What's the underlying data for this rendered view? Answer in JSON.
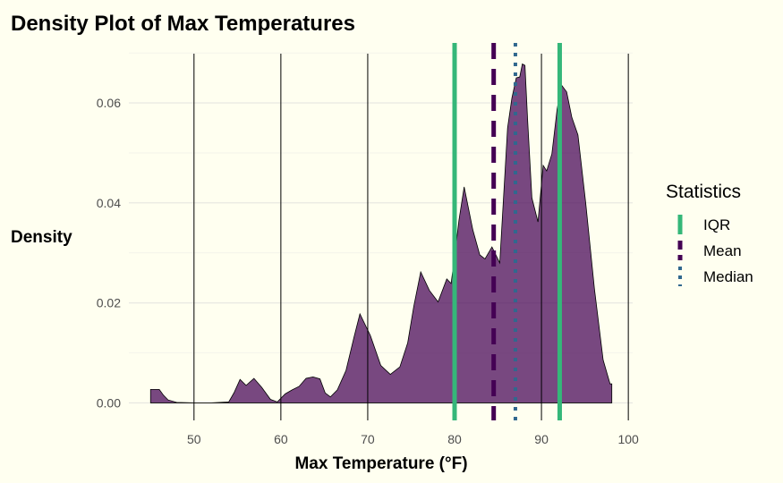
{
  "chart_data": {
    "type": "area",
    "title": "Density Plot of Max Temperatures",
    "xlabel": "Max Temperature (°F)",
    "ylabel": "Density",
    "xlim": [
      42.5,
      100.5
    ],
    "ylim": [
      -0.0035,
      0.072
    ],
    "x_ticks": [
      50,
      60,
      70,
      80,
      90,
      100
    ],
    "y_ticks": [
      0.0,
      0.02,
      0.04,
      0.06
    ],
    "y_tick_labels": [
      "0.00",
      "0.02",
      "0.04",
      "0.06"
    ],
    "grid": true,
    "fill_color": "#440154",
    "vertical_lines": [
      50,
      60,
      70,
      90,
      100
    ],
    "density": {
      "x": [
        45,
        46,
        46.5,
        47,
        48,
        50,
        52,
        54,
        54.6,
        55.3,
        56,
        56.9,
        57.8,
        58.8,
        59.6,
        60.5,
        61.3,
        62.1,
        62.9,
        63.7,
        64.5,
        65.1,
        65.7,
        66.5,
        67.5,
        68.4,
        69.1,
        70.3,
        71.5,
        72.6,
        73.7,
        74.6,
        75.3,
        76.1,
        77.1,
        78.1,
        79.1,
        79.6,
        80.1,
        80.5,
        81.1,
        82.1,
        82.9,
        83.5,
        84.3,
        85.2,
        86.1,
        86.6,
        87.1,
        87.5,
        87.8,
        88.1,
        88.4,
        88.9,
        89.6,
        90.2,
        90.6,
        91.2,
        91.8,
        92.3,
        92.9,
        93.5,
        94.2,
        95.1,
        96.1,
        97.1,
        97.9,
        98.1
      ],
      "y": [
        0.0027,
        0.0027,
        0.0015,
        0.0006,
        0.0001,
        0.0,
        0.0,
        0.0002,
        0.002,
        0.0047,
        0.0035,
        0.0049,
        0.0031,
        0.0007,
        0.0002,
        0.0018,
        0.0026,
        0.0033,
        0.0049,
        0.0052,
        0.0048,
        0.002,
        0.0012,
        0.0026,
        0.0065,
        0.013,
        0.0178,
        0.0135,
        0.0075,
        0.0057,
        0.0072,
        0.012,
        0.0193,
        0.0262,
        0.0225,
        0.0202,
        0.0248,
        0.0239,
        0.0306,
        0.0365,
        0.0432,
        0.0346,
        0.0296,
        0.0288,
        0.0312,
        0.028,
        0.055,
        0.061,
        0.065,
        0.0652,
        0.0678,
        0.0675,
        0.0568,
        0.041,
        0.0362,
        0.0475,
        0.0464,
        0.0498,
        0.0587,
        0.0636,
        0.0622,
        0.0571,
        0.0536,
        0.0399,
        0.0228,
        0.0086,
        0.0038,
        0.0038
      ]
    },
    "statistics": [
      {
        "name": "IQR",
        "values": [
          80,
          92.1
        ],
        "color": "#35b779",
        "style": "solid"
      },
      {
        "name": "Mean",
        "values": [
          84.5
        ],
        "color": "#440154",
        "style": "dashed"
      },
      {
        "name": "Median",
        "values": [
          87
        ],
        "color": "#31688e",
        "style": "dotted"
      }
    ],
    "legend": {
      "title": "Statistics",
      "position": "right"
    }
  }
}
